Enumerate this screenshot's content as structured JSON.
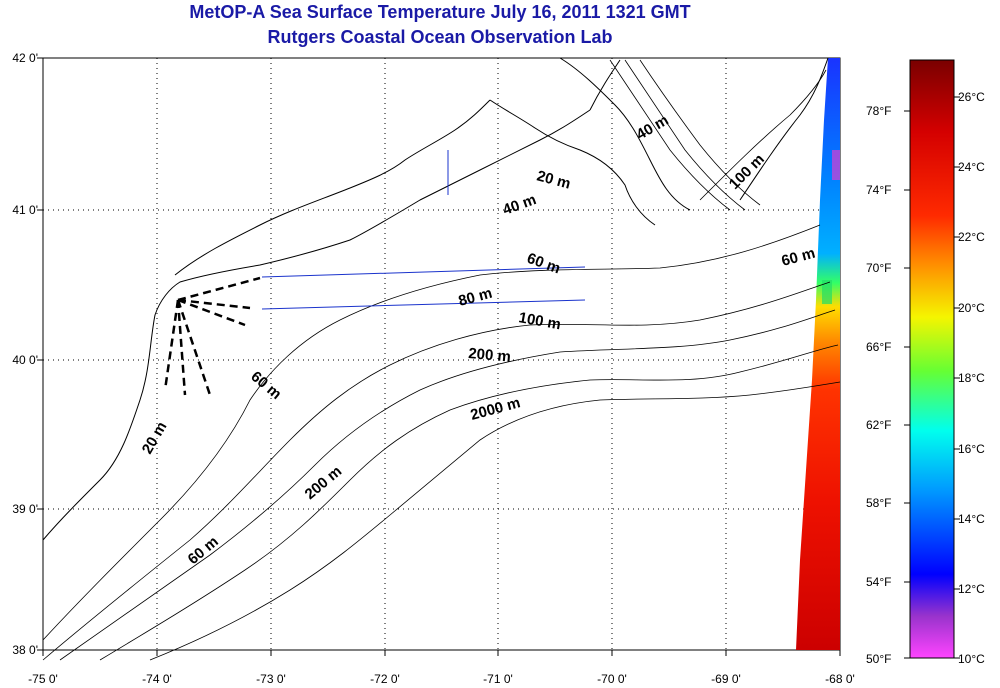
{
  "title": {
    "line1": "MetOP-A Sea Surface Temperature July 16, 2011 1321 GMT",
    "line2": "Rutgers Coastal Ocean Observation Lab"
  },
  "axes": {
    "lat_labels": [
      "42 0'",
      "41 0'",
      "40 0'",
      "39 0'",
      "38 0'"
    ],
    "lon_labels": [
      "-75 0'",
      "-74 0'",
      "-73 0'",
      "-72 0'",
      "-71 0'",
      "-70 0'",
      "-69 0'",
      "-68 0'"
    ]
  },
  "isobath_labels": {
    "l1": "40 m",
    "l2": "20 m",
    "l3": "40 m",
    "l4": "100 m",
    "l5": "60 m",
    "l6": "60 m",
    "l7": "80 m",
    "l8": "100 m",
    "l9": "200 m",
    "l10": "60 m",
    "l11": "2000 m",
    "l12": "20 m",
    "l13": "200 m",
    "l14": "60 m"
  },
  "colorbar": {
    "f_labels": [
      "78°F",
      "74°F",
      "70°F",
      "66°F",
      "62°F",
      "58°F",
      "54°F",
      "50°F"
    ],
    "c_labels": [
      "26°C",
      "24°C",
      "22°C",
      "20°C",
      "18°C",
      "16°C",
      "14°C",
      "12°C",
      "10°C"
    ]
  },
  "colors": {
    "title": "#1a1aa6",
    "colorbar_top": "#800000",
    "colorbar_mid": "#ffff00",
    "colorbar_low": "#0000ff",
    "colorbar_bottom": "#ff55ee"
  }
}
